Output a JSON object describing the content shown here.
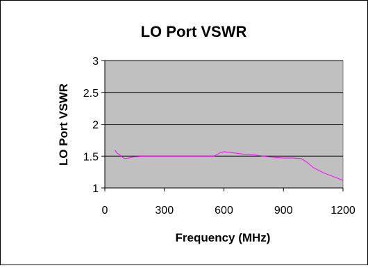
{
  "chart_data": {
    "type": "line",
    "title": "LO Port VSWR",
    "xlabel": "Frequency (MHz)",
    "ylabel": "LO Port VSWR",
    "xlim": [
      0,
      1200
    ],
    "ylim": [
      1,
      3
    ],
    "x_ticks": [
      "0",
      "300",
      "600",
      "900",
      "1200"
    ],
    "y_ticks": [
      "1",
      "1.5",
      "2",
      "2.5",
      "3"
    ],
    "x_tick_values": [
      0,
      300,
      600,
      900,
      1200
    ],
    "y_tick_values": [
      1,
      1.5,
      2,
      2.5,
      3
    ],
    "grid": "horizontal",
    "legend": "none",
    "plot_background": "#c0c0c0",
    "series": [
      {
        "color": "#ff00ff",
        "x": [
          50,
          60,
          75,
          90,
          100,
          120,
          150,
          200,
          300,
          400,
          500,
          550,
          580,
          600,
          650,
          700,
          750,
          800,
          850,
          900,
          950,
          990,
          1020,
          1050,
          1100,
          1150,
          1200
        ],
        "y": [
          1.6,
          1.55,
          1.52,
          1.48,
          1.46,
          1.47,
          1.49,
          1.5,
          1.5,
          1.5,
          1.5,
          1.5,
          1.55,
          1.57,
          1.55,
          1.53,
          1.52,
          1.5,
          1.48,
          1.47,
          1.47,
          1.46,
          1.4,
          1.32,
          1.24,
          1.18,
          1.12
        ]
      }
    ]
  }
}
